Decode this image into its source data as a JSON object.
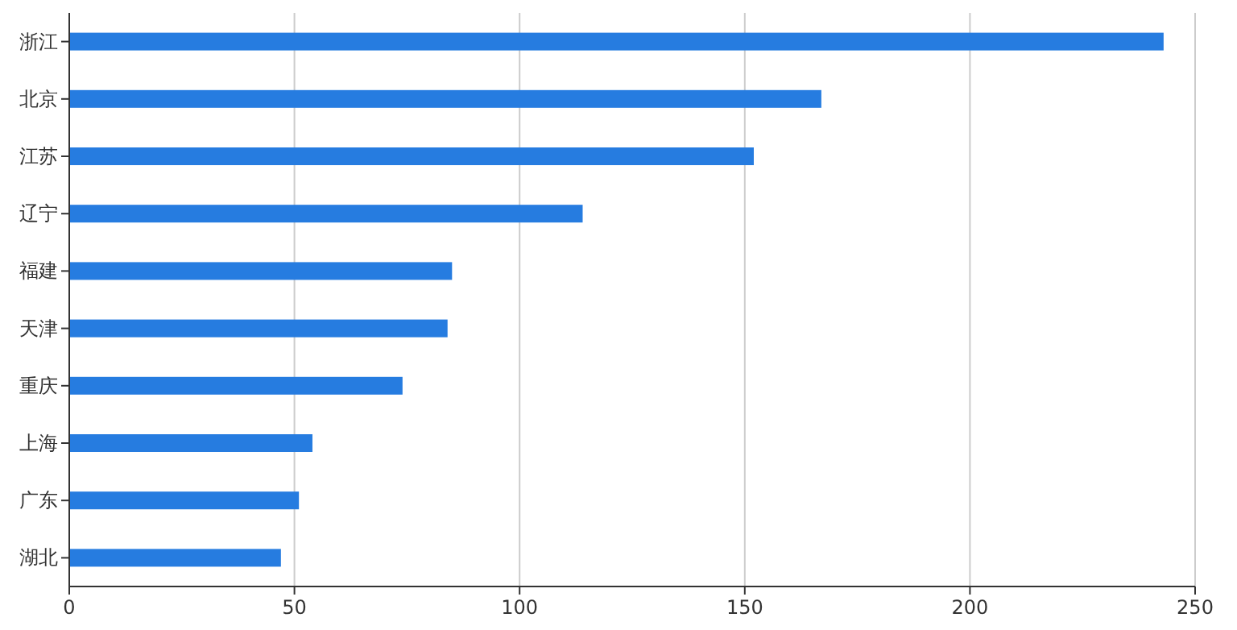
{
  "chart_data": {
    "type": "bar",
    "orientation": "horizontal",
    "categories": [
      "浙江",
      "北京",
      "江苏",
      "辽宁",
      "福建",
      "天津",
      "重庆",
      "上海",
      "广东",
      "湖北"
    ],
    "values": [
      243,
      167,
      152,
      114,
      85,
      84,
      74,
      54,
      51,
      47
    ],
    "color": "#267ce0",
    "xlim": [
      0,
      250
    ],
    "xticks": [
      0,
      50,
      100,
      150,
      200,
      250
    ],
    "grid": "x"
  }
}
